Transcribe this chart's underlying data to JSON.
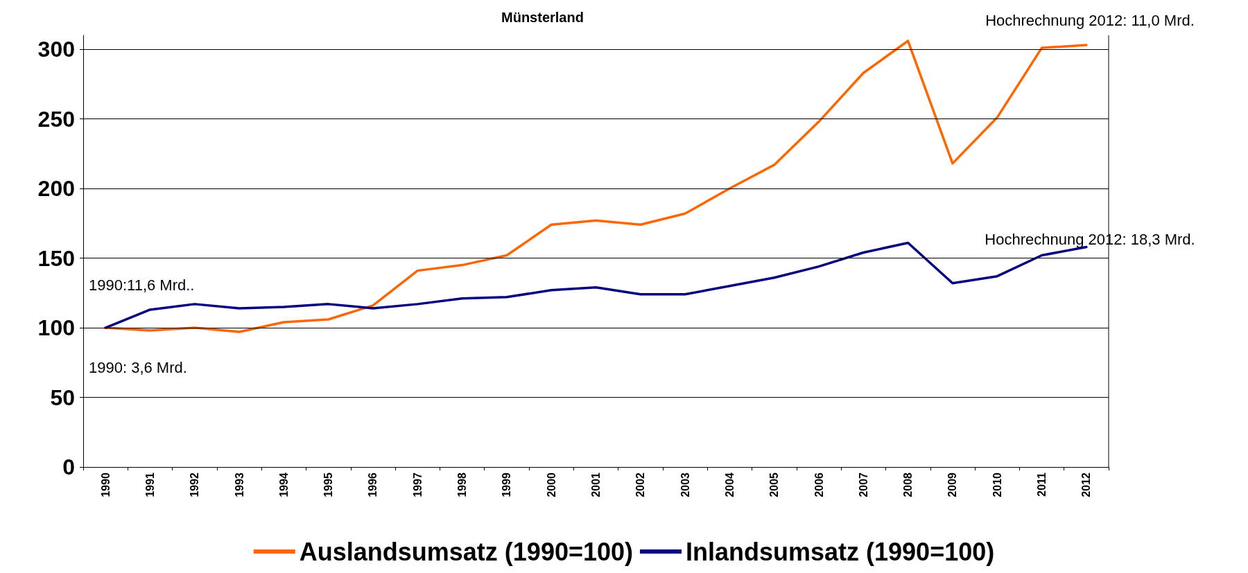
{
  "chart_data": {
    "type": "line",
    "title": "Münsterland",
    "categories": [
      "1990",
      "1991",
      "1992",
      "1993",
      "1994",
      "1995",
      "1996",
      "1997",
      "1998",
      "1999",
      "2000",
      "2001",
      "2002",
      "2003",
      "2004",
      "2005",
      "2006",
      "2007",
      "2008",
      "2009",
      "2010",
      "2011",
      "2012"
    ],
    "series": [
      {
        "name": "Auslandsumsatz (1990=100)",
        "color": "#ff6600",
        "values": [
          100,
          98,
          100,
          97,
          104,
          106,
          116,
          141,
          145,
          152,
          174,
          177,
          174,
          182,
          200,
          217,
          248,
          283,
          306,
          218,
          251,
          301,
          303
        ]
      },
      {
        "name": "Inlandsumsatz (1990=100)",
        "color": "#000080",
        "values": [
          100,
          113,
          117,
          114,
          115,
          117,
          114,
          117,
          121,
          122,
          127,
          129,
          124,
          124,
          130,
          136,
          144,
          154,
          161,
          132,
          137,
          152,
          158
        ]
      }
    ],
    "ylim": [
      0,
      310
    ],
    "yticks": [
      0,
      50,
      100,
      150,
      200,
      250,
      300
    ],
    "grid": "y",
    "legend": "bottom",
    "marker": "none",
    "line_style": "solid",
    "annotations": [
      "1990:11,6 Mrd..",
      "1990: 3,6 Mrd.",
      "Hochrechnung 2012: 11,0 Mrd.",
      "Hochrechnung 2012: 18,3 Mrd."
    ]
  }
}
